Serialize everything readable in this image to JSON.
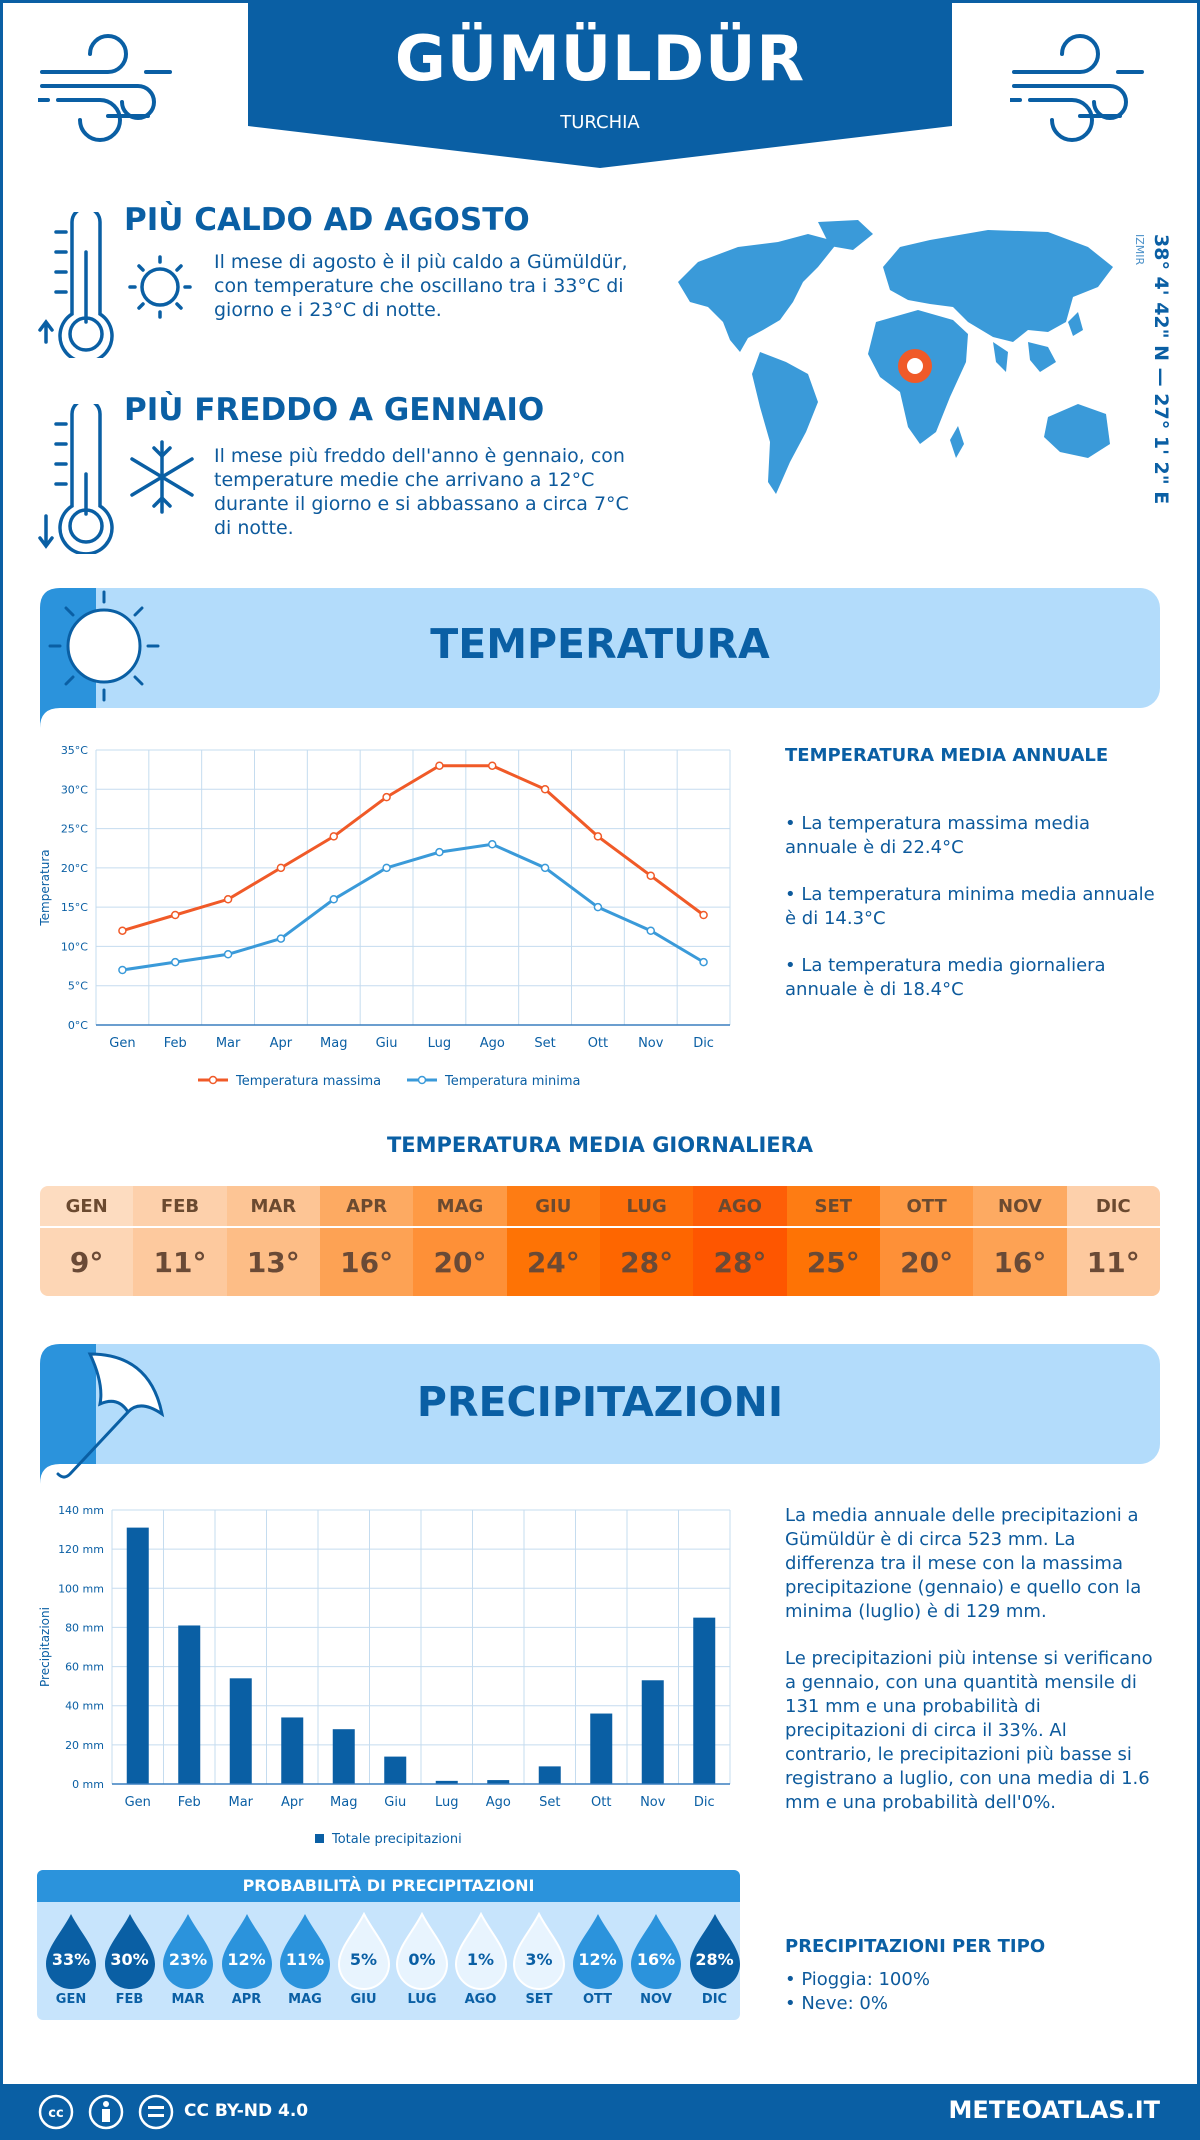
{
  "header": {
    "title": "GÜMÜLDÜR",
    "country": "TURCHIA"
  },
  "hot": {
    "heading": "PIÙ CALDO AD AGOSTO",
    "text_lines": [
      "Il mese di agosto è il più caldo a Gümüldür,",
      "con temperature che oscillano tra i 33°C di",
      "giorno e i 23°C di notte."
    ]
  },
  "cold": {
    "heading": "PIÙ FREDDO A GENNAIO",
    "text_lines": [
      "Il mese più freddo dell'anno è gennaio, con",
      "temperature medie che arrivano a 12°C",
      "durante il giorno e si abbassano a circa 7°C",
      "di notte."
    ]
  },
  "location": {
    "coordinates": "38° 4' 42\" N — 27° 1' 2\" E",
    "region": "IZMIR"
  },
  "temperature_section": {
    "title": "TEMPERATURA",
    "annual_heading": "TEMPERATURA MEDIA ANNUALE",
    "bullets": [
      [
        "• La temperatura massima media",
        "annuale è di 22.4°C"
      ],
      [
        "• La temperatura minima media annuale",
        "è di 14.3°C"
      ],
      [
        "• La temperatura media giornaliera",
        "annuale è di 18.4°C"
      ]
    ]
  },
  "daily": {
    "title": "TEMPERATURA MEDIA GIORNALIERA",
    "months": [
      "GEN",
      "FEB",
      "MAR",
      "APR",
      "MAG",
      "GIU",
      "LUG",
      "AGO",
      "SET",
      "OTT",
      "NOV",
      "DIC"
    ],
    "values": [
      "9°",
      "11°",
      "13°",
      "16°",
      "20°",
      "24°",
      "28°",
      "28°",
      "25°",
      "20°",
      "16°",
      "11°"
    ],
    "header_colors": [
      "#fddcc0",
      "#fdd0ab",
      "#fdc595",
      "#fdaa62",
      "#fe9a45",
      "#fe7c13",
      "#fe6e0a",
      "#fe5e07",
      "#fe7c13",
      "#fe9a45",
      "#fdaa62",
      "#fdd0ab"
    ],
    "value_colors": [
      "#fdd6b5",
      "#fdc99e",
      "#fdbd86",
      "#fda254",
      "#fe9037",
      "#fe7305",
      "#fe6600",
      "#fe5600",
      "#fe7305",
      "#fe9037",
      "#fda254",
      "#fdc99e"
    ]
  },
  "precip_section": {
    "title": "PRECIPITAZIONI",
    "text1_lines": [
      "La media annuale delle precipitazioni a",
      "Gümüldür è di circa 523 mm. La",
      "differenza tra il mese con la massima",
      "precipitazione (gennaio) e quello con la",
      "minima (luglio) è di 129 mm."
    ],
    "text2_lines": [
      "Le precipitazioni più intense si verificano",
      "a gennaio, con una quantità mensile di",
      "131 mm e una probabilità di",
      "precipitazioni di circa il 33%. Al",
      "contrario, le precipitazioni più basse si",
      "registrano a luglio, con una media di 1.6",
      "mm e una probabilità dell'0%."
    ],
    "prob_title": "PROBABILITÀ DI PRECIPITAZIONI",
    "prob_months": [
      "GEN",
      "FEB",
      "MAR",
      "APR",
      "MAG",
      "GIU",
      "LUG",
      "AGO",
      "SET",
      "OTT",
      "NOV",
      "DIC"
    ],
    "prob_values": [
      "33%",
      "30%",
      "23%",
      "12%",
      "11%",
      "5%",
      "0%",
      "1%",
      "3%",
      "12%",
      "16%",
      "28%"
    ],
    "prob_colors": [
      "#0a5fa4",
      "#0a5fa4",
      "#2b93dc",
      "#2b93dc",
      "#2b93dc",
      "#e8f4fe",
      "#e8f4fe",
      "#e8f4fe",
      "#e8f4fe",
      "#2b93dc",
      "#2b93dc",
      "#0a5fa4"
    ],
    "type_heading": "PRECIPITAZIONI PER TIPO",
    "types": [
      "• Pioggia: 100%",
      "• Neve: 0%"
    ]
  },
  "footer": {
    "license": "CC BY-ND 4.0",
    "site": "METEOATLAS.IT"
  },
  "chart_data": [
    {
      "type": "line",
      "categories": [
        "Gen",
        "Feb",
        "Mar",
        "Apr",
        "Mag",
        "Giu",
        "Lug",
        "Ago",
        "Set",
        "Ott",
        "Nov",
        "Dic"
      ],
      "series": [
        {
          "name": "Temperatura massima",
          "values": [
            12,
            14,
            16,
            20,
            24,
            29,
            33,
            33,
            30,
            24,
            19,
            14
          ],
          "color": "#f05a28"
        },
        {
          "name": "Temperatura minima",
          "values": [
            7,
            8,
            9,
            11,
            16,
            20,
            22,
            23,
            20,
            15,
            12,
            8
          ],
          "color": "#3a9ad9"
        }
      ],
      "ylabel": "Temperatura",
      "ylim": [
        0,
        35
      ],
      "yticks": [
        "0°C",
        "5°C",
        "10°C",
        "15°C",
        "20°C",
        "25°C",
        "30°C",
        "35°C"
      ],
      "grid": true,
      "legend": "bottom"
    },
    {
      "type": "bar",
      "categories": [
        "Gen",
        "Feb",
        "Mar",
        "Apr",
        "Mag",
        "Giu",
        "Lug",
        "Ago",
        "Set",
        "Ott",
        "Nov",
        "Dic"
      ],
      "series": [
        {
          "name": "Totale precipitazioni",
          "values": [
            131,
            81,
            54,
            34,
            28,
            14,
            1.6,
            2,
            9,
            36,
            53,
            85
          ],
          "color": "#0a5fa4"
        }
      ],
      "ylabel": "Precipitazioni",
      "ylim": [
        0,
        140
      ],
      "yticks": [
        "0 mm",
        "20 mm",
        "40 mm",
        "60 mm",
        "80 mm",
        "100 mm",
        "120 mm",
        "140 mm"
      ],
      "grid": true,
      "legend": "bottom"
    }
  ]
}
